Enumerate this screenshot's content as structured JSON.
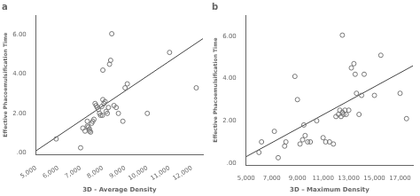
{
  "chart_data": [
    {
      "type": "scatter",
      "title": "a",
      "xlabel": "3D - Average Density",
      "ylabel": "Effective Phacoemulsification Time",
      "xlim": [
        5000,
        12500
      ],
      "ylim": [
        -0.1,
        7.0
      ],
      "xticks": [
        {
          "value": 5000,
          "label": "5,000"
        },
        {
          "value": 6000,
          "label": "6,000"
        },
        {
          "value": 7000,
          "label": "7,000"
        },
        {
          "value": 8000,
          "label": "8,000"
        },
        {
          "value": 9000,
          "label": "9,000"
        },
        {
          "value": 10000,
          "label": "10,000"
        },
        {
          "value": 11000,
          "label": "11,000"
        },
        {
          "value": 12000,
          "label": "12,000"
        }
      ],
      "yticks": [
        {
          "value": 0.0,
          "label": ".00"
        },
        {
          "value": 2.0,
          "label": "2.00"
        },
        {
          "value": 4.0,
          "label": "4.00"
        },
        {
          "value": 6.0,
          "label": "6.00"
        }
      ],
      "grid": false,
      "series": [
        {
          "type": "scatter",
          "marker": "circle",
          "color": "#777777",
          "x": [
            5900,
            7000,
            7100,
            7200,
            7300,
            7300,
            7350,
            7400,
            7400,
            7450,
            7500,
            7550,
            7600,
            7650,
            7700,
            7750,
            7800,
            7850,
            7900,
            7950,
            7980,
            8000,
            8000,
            8050,
            8100,
            8150,
            8200,
            8250,
            8300,
            8350,
            8400,
            8500,
            8600,
            8700,
            8900,
            9000,
            9100,
            10000,
            11000,
            12200
          ],
          "values": [
            0.7,
            0.25,
            1.25,
            1.1,
            1.6,
            1.35,
            1.3,
            1.2,
            1.1,
            1.05,
            1.5,
            1.6,
            1.7,
            2.5,
            2.4,
            2.3,
            2.2,
            2.0,
            1.9,
            2.35,
            1.9,
            4.2,
            2.7,
            2.5,
            2.6,
            2.1,
            2.0,
            2.3,
            4.5,
            4.7,
            6.05,
            2.4,
            2.3,
            2.0,
            1.6,
            3.3,
            3.5,
            2.0,
            5.1,
            3.3
          ]
        },
        {
          "type": "line",
          "line_style": "solid",
          "color": "#444444",
          "x": [
            5000,
            12500
          ],
          "values": [
            0.1,
            5.8
          ]
        }
      ]
    },
    {
      "type": "scatter",
      "title": "b",
      "xlabel": "3D – Maximum Density",
      "ylabel": "Effective Phacoemulsification Time",
      "xlim": [
        5000,
        18000
      ],
      "ylim": [
        -0.1,
        7.0
      ],
      "xticks": [
        {
          "value": 5000,
          "label": "5,000"
        },
        {
          "value": 7000,
          "label": "7,000"
        },
        {
          "value": 9000,
          "label": "9,000"
        },
        {
          "value": 11000,
          "label": "11,000"
        },
        {
          "value": 13000,
          "label": "13,000"
        },
        {
          "value": 15000,
          "label": "15,000"
        },
        {
          "value": 17000,
          "label": "17,000"
        }
      ],
      "yticks": [
        {
          "value": 0.0,
          "label": ".00"
        },
        {
          "value": 2.0,
          "label": "2.00"
        },
        {
          "value": 4.0,
          "label": "4.00"
        },
        {
          "value": 6.0,
          "label": "6.00"
        }
      ],
      "grid": false,
      "series": [
        {
          "type": "scatter",
          "marker": "circle",
          "color": "#777777",
          "x": [
            6000,
            6200,
            7200,
            7500,
            8000,
            8100,
            8800,
            9000,
            9200,
            9400,
            9500,
            9600,
            9800,
            10000,
            10500,
            11000,
            11200,
            11500,
            11800,
            12000,
            12200,
            12300,
            12400,
            12500,
            12500,
            12600,
            12700,
            12800,
            13000,
            13200,
            13400,
            13500,
            13600,
            13800,
            14000,
            14200,
            15000,
            15500,
            17000,
            17500
          ],
          "values": [
            0.5,
            1.0,
            1.5,
            0.25,
            0.8,
            1.0,
            4.1,
            3.0,
            0.9,
            1.1,
            1.8,
            1.3,
            1.0,
            1.0,
            2.0,
            1.2,
            1.0,
            1.0,
            0.9,
            2.2,
            2.3,
            2.5,
            2.2,
            6.05,
            2.4,
            2.3,
            2.5,
            2.3,
            2.5,
            4.5,
            4.7,
            4.2,
            3.3,
            2.3,
            3.2,
            4.2,
            3.2,
            5.1,
            3.3,
            2.1
          ]
        },
        {
          "type": "line",
          "line_style": "solid",
          "color": "#444444",
          "x": [
            5000,
            18000
          ],
          "values": [
            0.3,
            4.6
          ]
        }
      ]
    }
  ]
}
